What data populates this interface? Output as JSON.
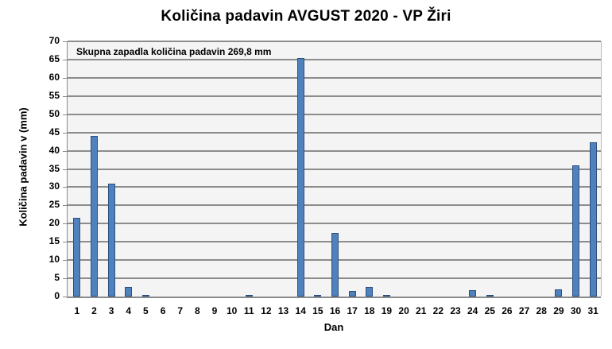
{
  "chart_data": {
    "type": "bar",
    "title": "Količina padavin AVGUST 2020 - VP Žiri",
    "xlabel": "Dan",
    "ylabel": "Količina padavin v  (mm)",
    "annotation": "Skupna zapadla količina padavin 269,8 mm",
    "ylim": [
      0,
      70
    ],
    "ytick_step": 5,
    "yticks": [
      0,
      5,
      10,
      15,
      20,
      25,
      30,
      35,
      40,
      45,
      50,
      55,
      60,
      65,
      70
    ],
    "grid": true,
    "legend": null,
    "categories": [
      "1",
      "2",
      "3",
      "4",
      "5",
      "6",
      "7",
      "8",
      "9",
      "10",
      "11",
      "12",
      "13",
      "14",
      "15",
      "16",
      "17",
      "18",
      "19",
      "20",
      "21",
      "22",
      "23",
      "24",
      "25",
      "26",
      "27",
      "28",
      "29",
      "30",
      "31"
    ],
    "values": [
      21.6,
      44.0,
      30.9,
      2.6,
      0.3,
      0,
      0,
      0,
      0,
      0,
      0.3,
      0,
      0,
      65.4,
      0.5,
      17.4,
      1.5,
      2.7,
      0.3,
      0,
      0,
      0,
      0,
      1.8,
      0.3,
      0,
      0,
      0,
      2.0,
      35.9,
      42.3
    ],
    "colors": {
      "bar_fill": "#4f81bd",
      "bar_border": "#2c5080",
      "plot_bg": "#f4f4f4",
      "grid": "#8c8c8c"
    }
  }
}
